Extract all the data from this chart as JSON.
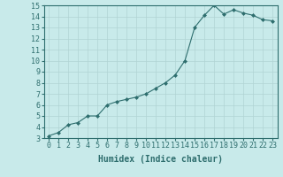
{
  "x": [
    0,
    1,
    2,
    3,
    4,
    5,
    6,
    7,
    8,
    9,
    10,
    11,
    12,
    13,
    14,
    15,
    16,
    17,
    18,
    19,
    20,
    21,
    22,
    23
  ],
  "y": [
    3.2,
    3.5,
    4.2,
    4.4,
    5.0,
    5.0,
    6.0,
    6.3,
    6.5,
    6.7,
    7.0,
    7.5,
    8.0,
    8.7,
    10.0,
    13.0,
    14.1,
    15.0,
    14.2,
    14.6,
    14.3,
    14.1,
    13.7,
    13.6
  ],
  "line_color": "#2e6e6e",
  "marker": "D",
  "marker_size": 2.0,
  "bg_color": "#c8eaea",
  "grid_color": "#b0d4d4",
  "xlabel": "Humidex (Indice chaleur)",
  "xlabel_fontsize": 7,
  "tick_fontsize": 6,
  "ylim": [
    3,
    15
  ],
  "xlim": [
    -0.5,
    23.5
  ],
  "yticks": [
    3,
    4,
    5,
    6,
    7,
    8,
    9,
    10,
    11,
    12,
    13,
    14,
    15
  ],
  "xticks": [
    0,
    1,
    2,
    3,
    4,
    5,
    6,
    7,
    8,
    9,
    10,
    11,
    12,
    13,
    14,
    15,
    16,
    17,
    18,
    19,
    20,
    21,
    22,
    23
  ]
}
